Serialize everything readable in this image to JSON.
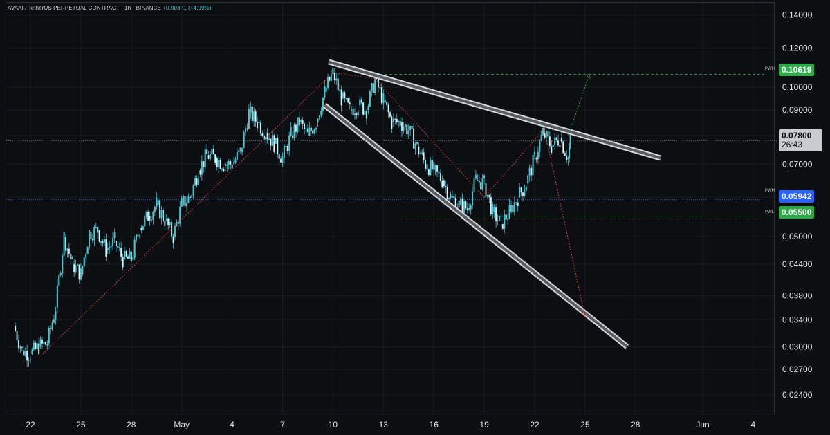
{
  "header": {
    "symbol_line": "AVAAI / TetherUS PERPETUAL CONTRACT · 1h · BINANCE",
    "change": "+0.00371 (+4.99%)"
  },
  "price_tags": {
    "pwh": {
      "label": "PWH",
      "value": "0.10619",
      "color": "#2fa84a"
    },
    "current": {
      "value": "0.07800",
      "countdown": "26:43",
      "color": "#c9cbd0"
    },
    "mid": {
      "label": "PWH",
      "value": "0.05942",
      "color": "#2962ff"
    },
    "pwl": {
      "label": "PWL",
      "value": "0.05500",
      "color": "#2fa84a"
    }
  },
  "colors": {
    "candle": "#4fc3cf",
    "grid": "#1a1c22",
    "wedge": "#d8d9dc",
    "projection_red": "#e0463c",
    "projection_green": "#2fa84a",
    "level_blue": "#2962ff"
  },
  "chart_data": {
    "type": "line",
    "title": "AVAAI / TetherUS PERPETUAL CONTRACT · 1h · BINANCE",
    "y_scale": "log",
    "ylim": [
      0.022,
      0.148
    ],
    "y_ticks": [
      "0.14000",
      "0.12000",
      "0.10000",
      "0.09000",
      "0.08000",
      "0.07000",
      "0.06000",
      "0.05000",
      "0.04400",
      "0.03800",
      "0.03400",
      "0.03000",
      "0.02700",
      "0.02400"
    ],
    "x_ticks": [
      "22",
      "25",
      "28",
      "May",
      "4",
      "7",
      "10",
      "13",
      "16",
      "19",
      "22",
      "25",
      "28",
      "Jun",
      "4"
    ],
    "x_tick_dates": [
      "04-22",
      "04-25",
      "04-28",
      "05-01",
      "05-04",
      "05-07",
      "05-10",
      "05-13",
      "05-16",
      "05-19",
      "05-22",
      "05-25",
      "05-28",
      "06-01",
      "06-04"
    ],
    "series": [
      {
        "type": "price_path",
        "points": [
          [
            "04-21 00:00",
            0.033
          ],
          [
            "04-21 12:00",
            0.0295
          ],
          [
            "04-22 00:00",
            0.029
          ],
          [
            "04-22 12:00",
            0.03
          ],
          [
            "04-23 00:00",
            0.0305
          ],
          [
            "04-23 12:00",
            0.036
          ],
          [
            "04-24 00:00",
            0.05
          ],
          [
            "04-24 12:00",
            0.044
          ],
          [
            "04-25 00:00",
            0.042
          ],
          [
            "04-25 12:00",
            0.051
          ],
          [
            "04-26 00:00",
            0.0515
          ],
          [
            "04-26 12:00",
            0.047
          ],
          [
            "04-27 00:00",
            0.049
          ],
          [
            "04-27 12:00",
            0.045
          ],
          [
            "04-28 00:00",
            0.045
          ],
          [
            "04-28 12:00",
            0.052
          ],
          [
            "04-29 00:00",
            0.055
          ],
          [
            "04-29 12:00",
            0.058
          ],
          [
            "04-30 00:00",
            0.054
          ],
          [
            "04-30 12:00",
            0.05
          ],
          [
            "05-01 00:00",
            0.058
          ],
          [
            "05-01 12:00",
            0.06
          ],
          [
            "05-02 00:00",
            0.068
          ],
          [
            "05-02 12:00",
            0.073
          ],
          [
            "05-03 00:00",
            0.072
          ],
          [
            "05-03 12:00",
            0.07
          ],
          [
            "05-04 00:00",
            0.07
          ],
          [
            "05-04 12:00",
            0.074
          ],
          [
            "05-05 00:00",
            0.089
          ],
          [
            "05-05 12:00",
            0.085
          ],
          [
            "05-06 00:00",
            0.081
          ],
          [
            "05-06 12:00",
            0.077
          ],
          [
            "05-07 00:00",
            0.072
          ],
          [
            "05-07 12:00",
            0.08
          ],
          [
            "05-08 00:00",
            0.085
          ],
          [
            "05-08 12:00",
            0.08
          ],
          [
            "05-09 00:00",
            0.085
          ],
          [
            "05-09 12:00",
            0.098
          ],
          [
            "05-10 00:00",
            0.107
          ],
          [
            "05-10 12:00",
            0.095
          ],
          [
            "05-11 00:00",
            0.09
          ],
          [
            "05-11 12:00",
            0.092
          ],
          [
            "05-12 00:00",
            0.09
          ],
          [
            "05-12 12:00",
            0.104
          ],
          [
            "05-13 00:00",
            0.094
          ],
          [
            "05-13 12:00",
            0.085
          ],
          [
            "05-14 00:00",
            0.085
          ],
          [
            "05-14 12:00",
            0.082
          ],
          [
            "05-15 00:00",
            0.076
          ],
          [
            "05-15 12:00",
            0.07
          ],
          [
            "05-16 00:00",
            0.068
          ],
          [
            "05-16 12:00",
            0.065
          ],
          [
            "05-17 00:00",
            0.06
          ],
          [
            "05-17 12:00",
            0.058
          ],
          [
            "05-18 00:00",
            0.057
          ],
          [
            "05-18 12:00",
            0.065
          ],
          [
            "05-19 00:00",
            0.064
          ],
          [
            "05-19 12:00",
            0.056
          ],
          [
            "05-20 00:00",
            0.053
          ],
          [
            "05-20 12:00",
            0.056
          ],
          [
            "05-21 00:00",
            0.06
          ],
          [
            "05-21 12:00",
            0.064
          ],
          [
            "05-22 00:00",
            0.072
          ],
          [
            "05-22 12:00",
            0.081
          ],
          [
            "05-23 00:00",
            0.076
          ],
          [
            "05-23 12:00",
            0.079
          ],
          [
            "05-24 00:00",
            0.072
          ],
          [
            "05-24 03:00",
            0.078
          ]
        ]
      }
    ],
    "levels": [
      {
        "label": "PWH",
        "value": 0.10619,
        "style": "dashed",
        "color": "#2fa84a"
      },
      {
        "label": "PWH",
        "value": 0.05942,
        "style": "dotted",
        "color": "#2962ff"
      },
      {
        "label": "PWL",
        "value": 0.055,
        "style": "dashed",
        "color": "#2fa84a"
      }
    ],
    "trendlines": [
      {
        "name": "wedge-upper",
        "from": [
          "05-09 18:00",
          0.1125
        ],
        "to": [
          "05-29 12:00",
          0.072
        ]
      },
      {
        "name": "wedge-lower",
        "from": [
          "05-09 12:00",
          0.092
        ],
        "to": [
          "05-27 12:00",
          0.03
        ]
      }
    ],
    "projections": [
      {
        "color": "red",
        "from": [
          "05-22 14:00",
          0.082
        ],
        "to": [
          "05-25 00:00",
          0.0345
        ]
      },
      {
        "color": "green",
        "from": [
          "05-24 00:00",
          0.08
        ],
        "to": [
          "05-25 06:00",
          0.106
        ]
      }
    ],
    "current_price": 0.078,
    "grid": true
  }
}
